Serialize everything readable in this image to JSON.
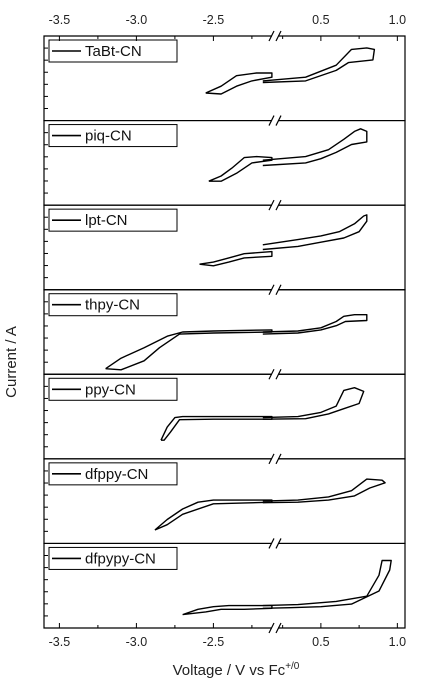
{
  "chart_data": {
    "type": "line",
    "xlabel": "Voltage / V vs Fc",
    "xlabel_superscript": "+/0",
    "ylabel": "Current / A",
    "axis_break": {
      "between": [
        -2.1,
        0.2
      ],
      "marker": "//"
    },
    "x_ticks_left": [
      {
        "value": -3.5,
        "label": "-3.5"
      },
      {
        "value": -3.0,
        "label": "-3.0"
      },
      {
        "value": -2.5,
        "label": "-2.5"
      }
    ],
    "x_ticks_right": [
      {
        "value": 0.5,
        "label": "0.5"
      },
      {
        "value": 1.0,
        "label": "1.0"
      }
    ],
    "ticks_on": [
      "top",
      "bottom"
    ],
    "grid": false,
    "legend_placement": "top-left",
    "series": [
      {
        "name": "TaBt-CN",
        "neg": [
          [
            -2.55,
            -0.28
          ],
          [
            -2.45,
            -0.15
          ],
          [
            -2.35,
            0.05
          ],
          [
            -2.22,
            0.1
          ],
          [
            -2.12,
            0.1
          ],
          [
            -2.12,
            0.02
          ],
          [
            -2.25,
            -0.05
          ],
          [
            -2.35,
            -0.15
          ],
          [
            -2.45,
            -0.3
          ],
          [
            -2.55,
            -0.28
          ]
        ],
        "pos": [
          [
            0.12,
            -0.05
          ],
          [
            0.4,
            0.02
          ],
          [
            0.6,
            0.25
          ],
          [
            0.7,
            0.55
          ],
          [
            0.8,
            0.58
          ],
          [
            0.85,
            0.55
          ],
          [
            0.84,
            0.35
          ],
          [
            0.68,
            0.3
          ],
          [
            0.6,
            0.15
          ],
          [
            0.4,
            -0.05
          ],
          [
            0.12,
            -0.08
          ]
        ]
      },
      {
        "name": "piq-CN",
        "neg": [
          [
            -2.53,
            -0.35
          ],
          [
            -2.45,
            -0.25
          ],
          [
            -2.38,
            -0.1
          ],
          [
            -2.3,
            0.1
          ],
          [
            -2.22,
            0.12
          ],
          [
            -2.12,
            0.1
          ],
          [
            -2.12,
            0.05
          ],
          [
            -2.25,
            0.0
          ],
          [
            -2.35,
            -0.2
          ],
          [
            -2.45,
            -0.35
          ],
          [
            -2.53,
            -0.35
          ]
        ],
        "pos": [
          [
            0.12,
            0.05
          ],
          [
            0.4,
            0.12
          ],
          [
            0.55,
            0.25
          ],
          [
            0.65,
            0.45
          ],
          [
            0.72,
            0.6
          ],
          [
            0.76,
            0.65
          ],
          [
            0.8,
            0.6
          ],
          [
            0.8,
            0.4
          ],
          [
            0.7,
            0.35
          ],
          [
            0.6,
            0.2
          ],
          [
            0.5,
            0.08
          ],
          [
            0.4,
            0.0
          ],
          [
            0.12,
            -0.05
          ]
        ]
      },
      {
        "name": "lpt-CN",
        "neg": [
          [
            -2.59,
            -0.32
          ],
          [
            -2.5,
            -0.28
          ],
          [
            -2.4,
            -0.2
          ],
          [
            -2.3,
            -0.12
          ],
          [
            -2.12,
            -0.08
          ],
          [
            -2.12,
            -0.17
          ],
          [
            -2.3,
            -0.2
          ],
          [
            -2.4,
            -0.28
          ],
          [
            -2.5,
            -0.35
          ],
          [
            -2.59,
            -0.32
          ]
        ],
        "pos": [
          [
            0.12,
            0.05
          ],
          [
            0.35,
            0.15
          ],
          [
            0.5,
            0.22
          ],
          [
            0.62,
            0.3
          ],
          [
            0.72,
            0.45
          ],
          [
            0.78,
            0.6
          ],
          [
            0.8,
            0.62
          ],
          [
            0.8,
            0.5
          ],
          [
            0.75,
            0.3
          ],
          [
            0.65,
            0.18
          ],
          [
            0.5,
            0.1
          ],
          [
            0.35,
            0.02
          ],
          [
            0.12,
            -0.04
          ]
        ]
      },
      {
        "name": "thpy-CN",
        "neg": [
          [
            -3.2,
            -0.7
          ],
          [
            -3.1,
            -0.5
          ],
          [
            -2.95,
            -0.3
          ],
          [
            -2.8,
            -0.08
          ],
          [
            -2.7,
            0.0
          ],
          [
            -2.5,
            0.02
          ],
          [
            -2.12,
            0.04
          ],
          [
            -2.12,
            0.0
          ],
          [
            -2.5,
            -0.02
          ],
          [
            -2.72,
            -0.04
          ],
          [
            -2.85,
            -0.3
          ],
          [
            -2.95,
            -0.55
          ],
          [
            -3.1,
            -0.72
          ],
          [
            -3.2,
            -0.7
          ]
        ],
        "pos": [
          [
            0.12,
            0.0
          ],
          [
            0.35,
            0.02
          ],
          [
            0.5,
            0.08
          ],
          [
            0.6,
            0.2
          ],
          [
            0.65,
            0.3
          ],
          [
            0.72,
            0.33
          ],
          [
            0.8,
            0.33
          ],
          [
            0.8,
            0.22
          ],
          [
            0.66,
            0.2
          ],
          [
            0.6,
            0.12
          ],
          [
            0.5,
            0.04
          ],
          [
            0.35,
            -0.02
          ],
          [
            0.12,
            -0.04
          ]
        ]
      },
      {
        "name": "ppy-CN",
        "neg": [
          [
            -2.84,
            -0.45
          ],
          [
            -2.8,
            -0.2
          ],
          [
            -2.75,
            -0.02
          ],
          [
            -2.7,
            0.0
          ],
          [
            -2.5,
            0.0
          ],
          [
            -2.12,
            0.0
          ],
          [
            -2.12,
            -0.05
          ],
          [
            -2.5,
            -0.05
          ],
          [
            -2.72,
            -0.06
          ],
          [
            -2.78,
            -0.3
          ],
          [
            -2.82,
            -0.45
          ],
          [
            -2.84,
            -0.45
          ]
        ],
        "pos": [
          [
            0.12,
            -0.02
          ],
          [
            0.35,
            0.0
          ],
          [
            0.5,
            0.08
          ],
          [
            0.6,
            0.2
          ],
          [
            0.65,
            0.5
          ],
          [
            0.72,
            0.55
          ],
          [
            0.78,
            0.48
          ],
          [
            0.75,
            0.25
          ],
          [
            0.65,
            0.15
          ],
          [
            0.55,
            0.05
          ],
          [
            0.4,
            -0.04
          ],
          [
            0.12,
            -0.05
          ]
        ]
      },
      {
        "name": "dfppy-CN",
        "neg": [
          [
            -2.88,
            -0.55
          ],
          [
            -2.8,
            -0.35
          ],
          [
            -2.7,
            -0.15
          ],
          [
            -2.6,
            -0.02
          ],
          [
            -2.5,
            0.02
          ],
          [
            -2.12,
            0.02
          ],
          [
            -2.12,
            -0.02
          ],
          [
            -2.5,
            -0.05
          ],
          [
            -2.7,
            -0.25
          ],
          [
            -2.8,
            -0.45
          ],
          [
            -2.88,
            -0.55
          ]
        ],
        "pos": [
          [
            0.12,
            0.0
          ],
          [
            0.35,
            0.02
          ],
          [
            0.55,
            0.08
          ],
          [
            0.7,
            0.2
          ],
          [
            0.8,
            0.42
          ],
          [
            0.9,
            0.4
          ],
          [
            0.92,
            0.35
          ],
          [
            0.82,
            0.25
          ],
          [
            0.72,
            0.1
          ],
          [
            0.55,
            0.02
          ],
          [
            0.35,
            -0.02
          ],
          [
            0.12,
            -0.03
          ]
        ]
      },
      {
        "name": "dfpypy-CN",
        "neg": [
          [
            -2.7,
            -0.55
          ],
          [
            -2.6,
            -0.45
          ],
          [
            -2.5,
            -0.4
          ],
          [
            -2.4,
            -0.38
          ],
          [
            -2.2,
            -0.38
          ],
          [
            -2.12,
            -0.38
          ],
          [
            -2.12,
            -0.43
          ],
          [
            -2.3,
            -0.45
          ],
          [
            -2.45,
            -0.45
          ],
          [
            -2.55,
            -0.5
          ],
          [
            -2.7,
            -0.55
          ]
        ],
        "pos": [
          [
            0.12,
            -0.38
          ],
          [
            0.35,
            -0.36
          ],
          [
            0.6,
            -0.3
          ],
          [
            0.8,
            -0.2
          ],
          [
            0.88,
            0.2
          ],
          [
            0.9,
            0.48
          ],
          [
            0.96,
            0.48
          ],
          [
            0.95,
            0.3
          ],
          [
            0.88,
            -0.1
          ],
          [
            0.7,
            -0.35
          ],
          [
            0.5,
            -0.4
          ],
          [
            0.3,
            -0.42
          ],
          [
            0.12,
            -0.43
          ]
        ]
      }
    ]
  }
}
